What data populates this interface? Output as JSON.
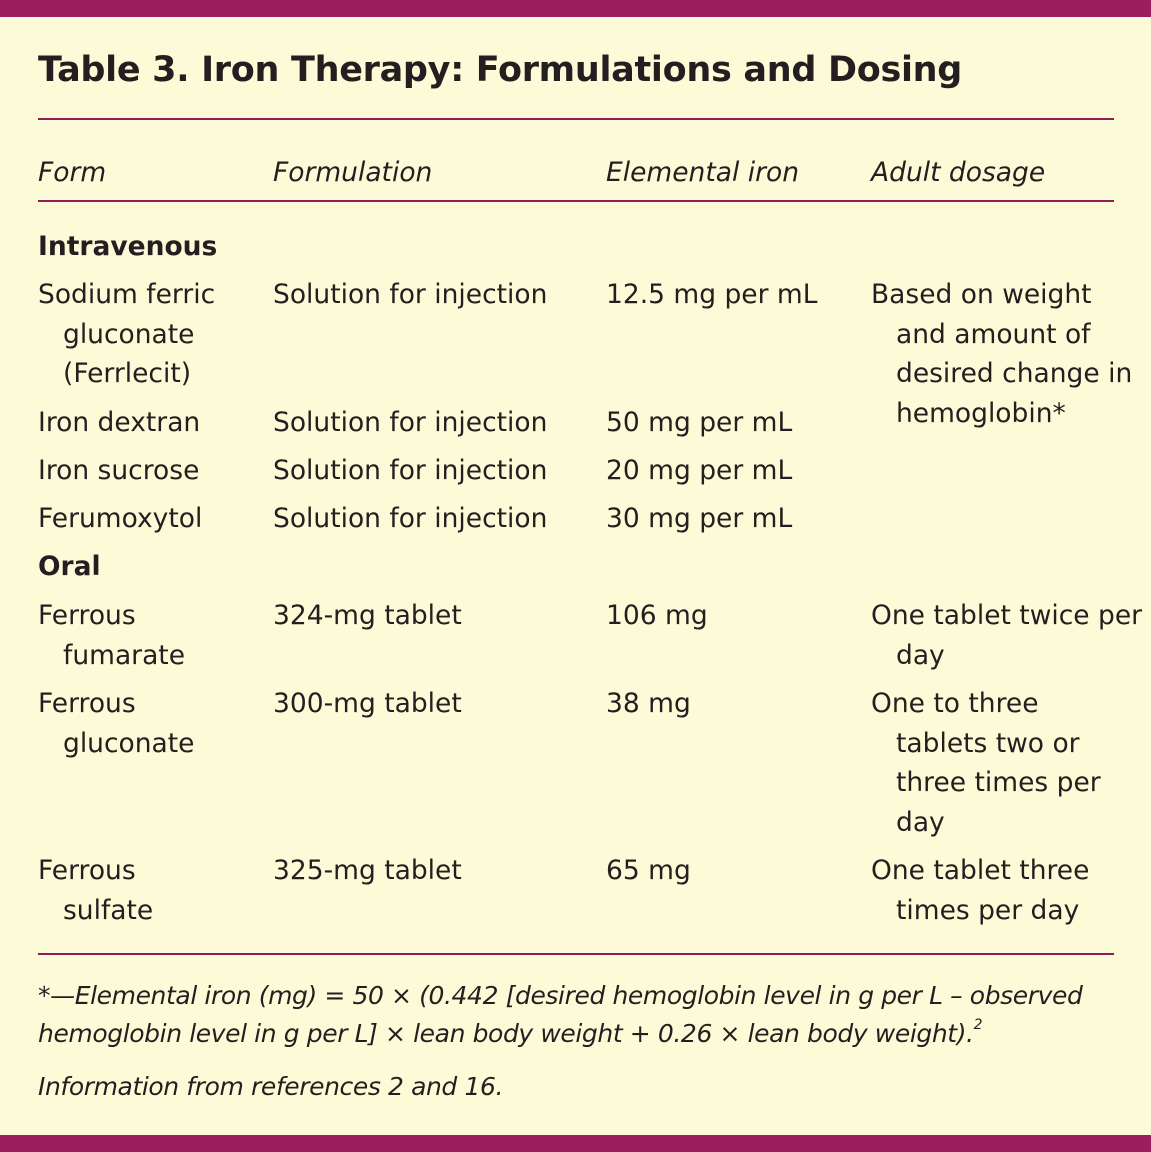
{
  "title": "Table 3. Iron Therapy: Formulations and Dosing",
  "colors": {
    "accent": "#9b1e5f",
    "background": "#fdfbd7"
  },
  "columns": [
    "Form",
    "Formulation",
    "Elemental iron",
    "Adult dosage"
  ],
  "sections": [
    {
      "label": "Intravenous",
      "rows": [
        {
          "form": "Sodium ferric gluconate (Ferrlecit)",
          "formulation": "Solution for injection",
          "iron": "12.5 mg per mL"
        },
        {
          "form": "Iron dextran",
          "formulation": "Solution for injection",
          "iron": "50 mg per mL"
        },
        {
          "form": "Iron sucrose",
          "formulation": "Solution for injection",
          "iron": "20 mg per mL"
        },
        {
          "form": "Ferumoxytol",
          "formulation": "Solution for injection",
          "iron": "30 mg per mL"
        }
      ],
      "dosage": "Based on weight and amount of desired change in hemoglobin*"
    },
    {
      "label": "Oral",
      "rows": [
        {
          "form": "Ferrous fumarate",
          "formulation": "324-mg tablet",
          "iron": "106 mg",
          "dosage": "One tablet twice per day"
        },
        {
          "form": "Ferrous gluconate",
          "formulation": "300-mg tablet",
          "iron": "38 mg",
          "dosage": "One to three tablets two or three times per day"
        },
        {
          "form": "Ferrous sulfate",
          "formulation": "325-mg tablet",
          "iron": "65 mg",
          "dosage": "One tablet three times per day"
        }
      ]
    }
  ],
  "footnote": "*—Elemental iron (mg) = 50 × (0.442 [desired hemoglobin level in g per L – observed hemoglobin level in g per L] × lean body weight + 0.26 × lean body weight).",
  "footnote_ref": "2",
  "source": "Information from references 2 and 16."
}
